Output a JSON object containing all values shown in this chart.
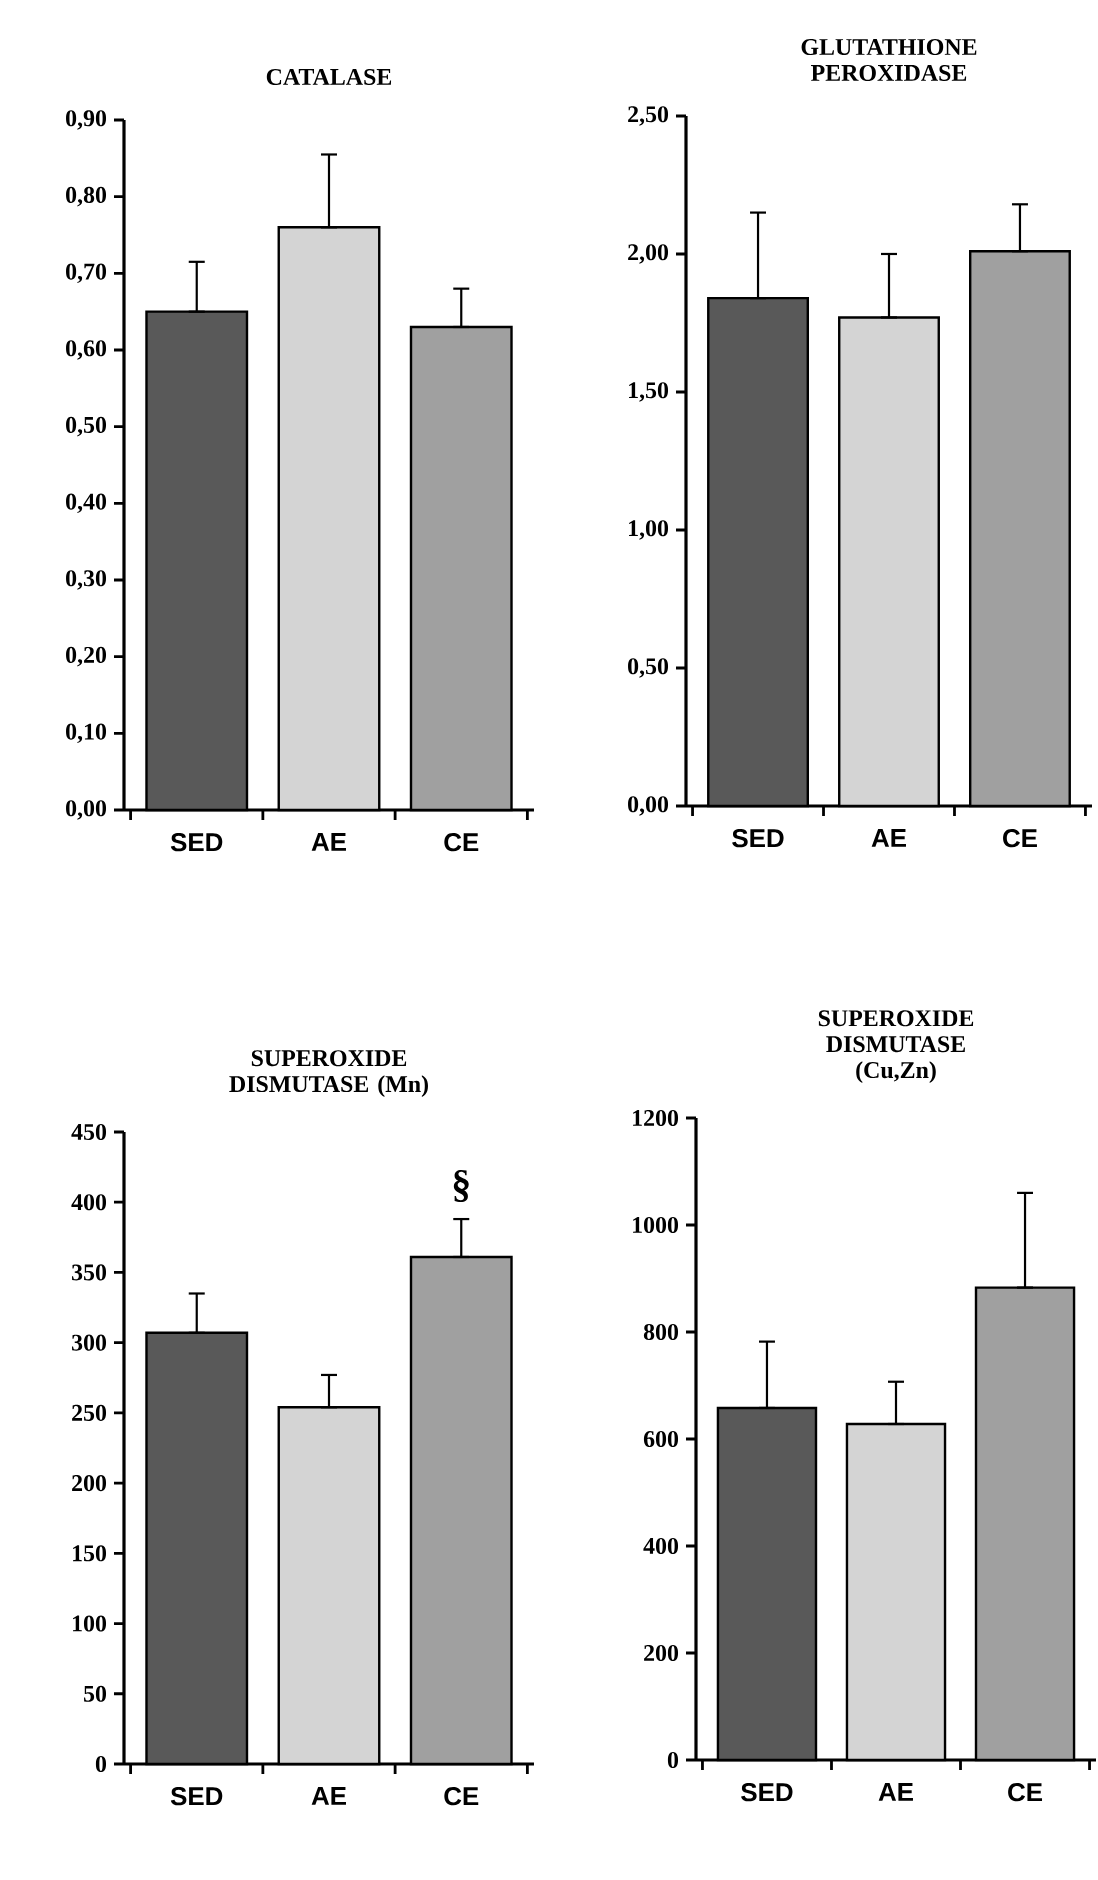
{
  "chart_data": [
    {
      "type": "bar",
      "title": "CATALASE",
      "categories": [
        "SED",
        "AE",
        "CE"
      ],
      "values": [
        0.65,
        0.76,
        0.63
      ],
      "colors": [
        "#595959",
        "#d4d4d4",
        "#a0a0a0"
      ],
      "errors": [
        [
          0.65,
          0.715
        ],
        [
          0.76,
          0.855
        ],
        [
          0.63,
          0.68
        ]
      ],
      "ylim": [
        0,
        0.9
      ],
      "yticks": [
        {
          "value": 0,
          "label": "0,00"
        },
        {
          "value": 0.1,
          "label": "0,10"
        },
        {
          "value": 0.2,
          "label": "0,20"
        },
        {
          "value": 0.3,
          "label": "0,30"
        },
        {
          "value": 0.4,
          "label": "0,40"
        },
        {
          "value": 0.5,
          "label": "0,50"
        },
        {
          "value": 0.6,
          "label": "0,60"
        },
        {
          "value": 0.7,
          "label": "0,70"
        },
        {
          "value": 0.8,
          "label": "0,80"
        },
        {
          "value": 0.9,
          "label": "0,90"
        }
      ]
    },
    {
      "type": "bar",
      "title": "GLUTATHIONE PEROXIDASE",
      "categories": [
        "SED",
        "AE",
        "CE"
      ],
      "values": [
        1.84,
        1.77,
        2.01
      ],
      "colors": [
        "#595959",
        "#d4d4d4",
        "#a0a0a0"
      ],
      "errors": [
        [
          1.84,
          2.15
        ],
        [
          1.77,
          2.0
        ],
        [
          2.01,
          2.18
        ]
      ],
      "ylim": [
        0,
        2.5
      ],
      "yticks": [
        {
          "value": 0,
          "label": "0,00"
        },
        {
          "value": 0.5,
          "label": "0,50"
        },
        {
          "value": 1,
          "label": "1,00"
        },
        {
          "value": 1.5,
          "label": "1,50"
        },
        {
          "value": 2,
          "label": "2,00"
        },
        {
          "value": 2.5,
          "label": "2,50"
        }
      ]
    },
    {
      "type": "bar",
      "title": "SUPEROXIDE DISMUTASE (Mn)",
      "categories": [
        "SED",
        "AE",
        "CE"
      ],
      "values": [
        307,
        254,
        361
      ],
      "colors": [
        "#595959",
        "#d4d4d4",
        "#a0a0a0"
      ],
      "errors": [
        [
          307,
          335
        ],
        [
          254,
          277
        ],
        [
          361,
          388
        ]
      ],
      "ylim": [
        0,
        450
      ],
      "yticks": [
        0,
        50,
        100,
        150,
        200,
        250,
        300,
        350,
        400,
        450
      ],
      "annotations": [
        "§"
      ]
    },
    {
      "type": "bar",
      "title": "SUPEROXIDE DISMUTASE (Cu,Zn)",
      "categories": [
        "SED",
        "AE",
        "CE"
      ],
      "values": [
        658,
        628,
        883
      ],
      "colors": [
        "#595959",
        "#d4d4d4",
        "#a0a0a0"
      ],
      "errors": [
        [
          658,
          782
        ],
        [
          628,
          707
        ],
        [
          883,
          1060
        ]
      ],
      "ylim": [
        0,
        1200
      ],
      "yticks": [
        0,
        200,
        400,
        600,
        800,
        1000,
        1200
      ]
    }
  ]
}
